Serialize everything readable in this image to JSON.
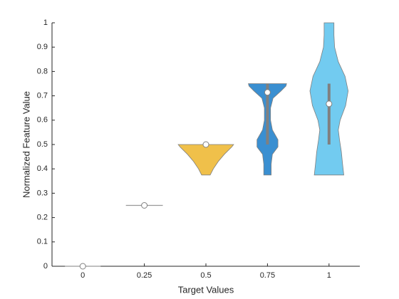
{
  "chart_data": {
    "type": "violin",
    "x_label": "Target Values",
    "y_label": "Normalized Feature Value",
    "categories": [
      "0",
      "0.25",
      "0.5",
      "0.75",
      "1"
    ],
    "ylim": [
      0,
      1
    ],
    "yticks": [
      0,
      0.1,
      0.2,
      0.3,
      0.4,
      0.5,
      0.6,
      0.7,
      0.8,
      0.9,
      1
    ],
    "violins": [
      {
        "color": "#999999",
        "y": [
          0
        ],
        "halfwidth": [
          0.29
        ],
        "median": 0
      },
      {
        "color": "#999999",
        "y": [
          0.25
        ],
        "halfwidth": [
          0.3
        ],
        "median": 0.25
      },
      {
        "color": "#f0c04a",
        "y": [
          0.375,
          0.4,
          0.43,
          0.46,
          0.49,
          0.5
        ],
        "halfwidth": [
          0.07,
          0.12,
          0.2,
          0.3,
          0.42,
          0.45
        ],
        "median": 0.5
      },
      {
        "color": "#3a8fd1",
        "y": [
          0.375,
          0.42,
          0.46,
          0.49,
          0.52,
          0.56,
          0.6,
          0.65,
          0.69,
          0.72,
          0.74,
          0.75
        ],
        "halfwidth": [
          0.06,
          0.06,
          0.08,
          0.17,
          0.17,
          0.08,
          0.05,
          0.05,
          0.09,
          0.22,
          0.3,
          0.31
        ],
        "median": 0.714,
        "q1": 0.5,
        "q3": 0.75
      },
      {
        "color": "#72cbf0",
        "y": [
          0.375,
          0.42,
          0.47,
          0.52,
          0.56,
          0.6,
          0.66,
          0.72,
          0.78,
          0.84,
          0.9,
          0.95,
          1
        ],
        "halfwidth": [
          0.24,
          0.22,
          0.2,
          0.17,
          0.15,
          0.18,
          0.27,
          0.31,
          0.26,
          0.15,
          0.09,
          0.08,
          0.08
        ],
        "median": 0.667,
        "q1": 0.5,
        "q3": 0.75
      }
    ]
  }
}
